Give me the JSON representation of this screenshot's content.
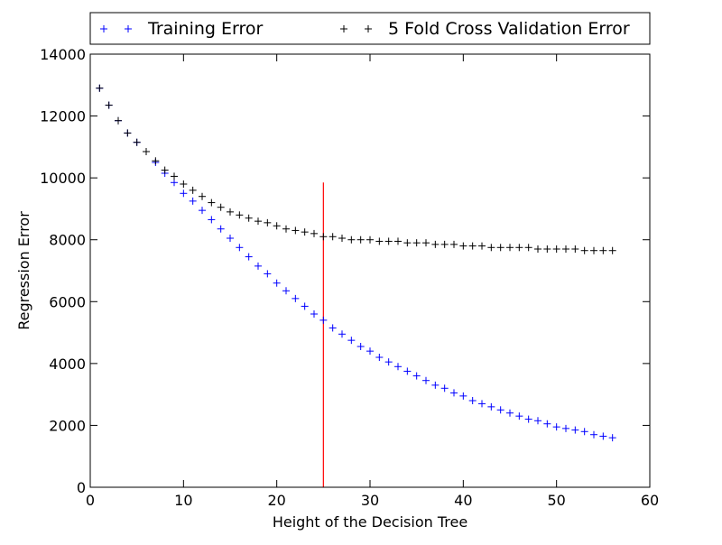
{
  "chart_data": {
    "type": "scatter",
    "title": "",
    "xlabel": "Height of the Decision Tree",
    "ylabel": "Regression Error",
    "xlim": [
      0,
      60
    ],
    "ylim": [
      0,
      14000
    ],
    "xticks": [
      0,
      10,
      20,
      30,
      40,
      50,
      60
    ],
    "yticks": [
      0,
      2000,
      4000,
      6000,
      8000,
      10000,
      12000,
      14000
    ],
    "xtick_labels": [
      "0",
      "10",
      "20",
      "30",
      "40",
      "50",
      "60"
    ],
    "ytick_labels": [
      "0",
      "2000",
      "4000",
      "6000",
      "8000",
      "10000",
      "12000",
      "14000"
    ],
    "grid": false,
    "legend": {
      "position": "top-outside",
      "entries": [
        "Training Error",
        "5 Fold Cross Validation Error"
      ]
    },
    "x": [
      1,
      2,
      3,
      4,
      5,
      6,
      7,
      8,
      9,
      10,
      11,
      12,
      13,
      14,
      15,
      16,
      17,
      18,
      19,
      20,
      21,
      22,
      23,
      24,
      25,
      26,
      27,
      28,
      29,
      30,
      31,
      32,
      33,
      34,
      35,
      36,
      37,
      38,
      39,
      40,
      41,
      42,
      43,
      44,
      45,
      46,
      47,
      48,
      49,
      50,
      51,
      52,
      53,
      54,
      55,
      56
    ],
    "series": [
      {
        "name": "Training Error",
        "color": "#0000ff",
        "marker": "+",
        "values": [
          12900,
          12350,
          11850,
          11450,
          11150,
          10850,
          10500,
          10150,
          9850,
          9500,
          9250,
          8950,
          8650,
          8350,
          8050,
          7750,
          7450,
          7150,
          6900,
          6600,
          6350,
          6100,
          5850,
          5600,
          5400,
          5150,
          4950,
          4750,
          4550,
          4400,
          4200,
          4050,
          3900,
          3750,
          3600,
          3450,
          3300,
          3200,
          3050,
          2950,
          2800,
          2700,
          2600,
          2500,
          2400,
          2300,
          2200,
          2150,
          2050,
          1950,
          1900,
          1850,
          1800,
          1700,
          1650,
          1600
        ]
      },
      {
        "name": "5 Fold Cross Validation Error",
        "color": "#000000",
        "marker": "+",
        "values": [
          12900,
          12350,
          11850,
          11450,
          11150,
          10850,
          10550,
          10250,
          10050,
          9800,
          9600,
          9400,
          9200,
          9050,
          8900,
          8800,
          8700,
          8600,
          8550,
          8450,
          8350,
          8300,
          8250,
          8200,
          8100,
          8100,
          8050,
          8000,
          8000,
          8000,
          7950,
          7950,
          7950,
          7900,
          7900,
          7900,
          7850,
          7850,
          7850,
          7800,
          7800,
          7800,
          7750,
          7750,
          7750,
          7750,
          7750,
          7700,
          7700,
          7700,
          7700,
          7700,
          7650,
          7650,
          7650,
          7650
        ]
      }
    ],
    "vline": {
      "x": 25,
      "y_range": [
        0,
        9850
      ],
      "color": "#ff0000"
    }
  }
}
